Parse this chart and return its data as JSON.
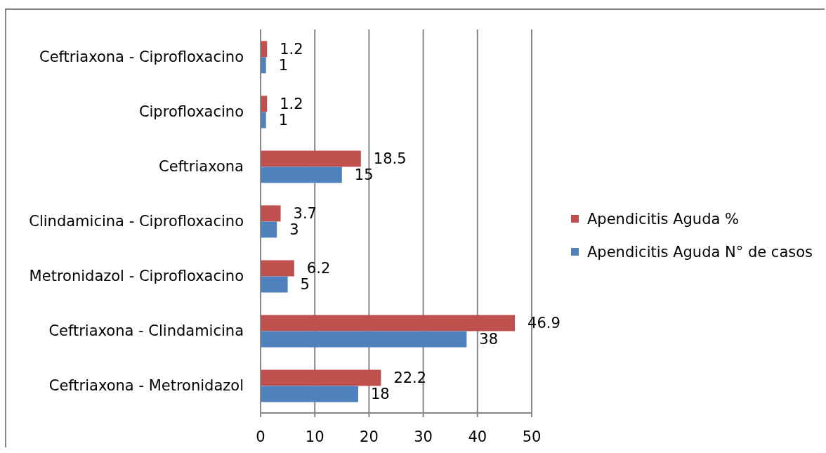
{
  "chart_data": {
    "type": "bar",
    "orientation": "horizontal",
    "categories": [
      "Ceftriaxona - Ciprofloxacino",
      "Ciprofloxacino",
      "Ceftriaxona",
      "Clindamicina - Ciprofloxacino",
      "Metronidazol - Ciprofloxacino",
      "Ceftriaxona - Clindamicina",
      "Ceftriaxona - Metronidazol"
    ],
    "series": [
      {
        "name": "Apendicitis Aguda %",
        "color": "#c0504d",
        "values": [
          1.2,
          1.2,
          18.5,
          3.7,
          6.2,
          46.9,
          22.2
        ]
      },
      {
        "name": "Apendicitis Aguda N° de casos",
        "color": "#4f81bd",
        "values": [
          1,
          1,
          15,
          3,
          5,
          38,
          18
        ]
      }
    ],
    "xlim": [
      0,
      50
    ],
    "xticks": [
      0,
      10,
      20,
      30,
      40,
      50
    ],
    "grid": "x",
    "legend": "right",
    "data_labels": true
  }
}
